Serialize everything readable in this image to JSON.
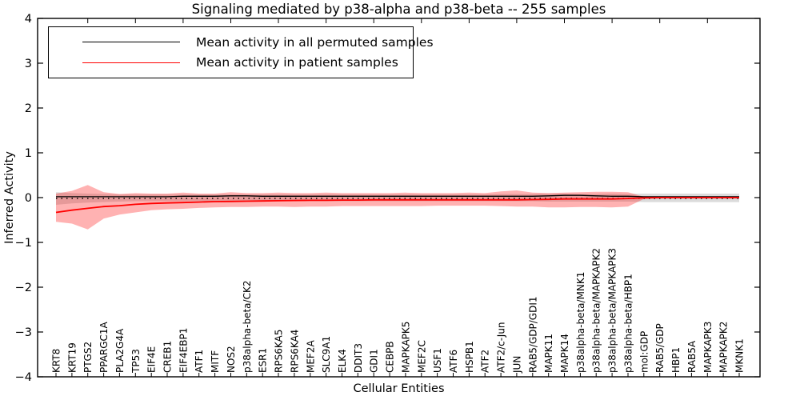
{
  "figure": {
    "background": "#ffffff"
  },
  "chart_data": {
    "type": "line",
    "title": "Signaling mediated by p38-alpha and p38-beta -- 255 samples",
    "xlabel": "Cellular Entities",
    "ylabel": "Inferred Activity",
    "ylim": [
      -4,
      4
    ],
    "yticks": [
      4,
      3,
      2,
      1,
      0,
      -1,
      -2,
      -3,
      -4
    ],
    "ytick_labels": [
      "4",
      "3",
      "2",
      "1",
      "0",
      "−1",
      "−2",
      "−3",
      "−4"
    ],
    "grid": false,
    "legend_position": "upper left",
    "categories": [
      "KRT8",
      "KRT19",
      "PTGS2",
      "PPARGC1A",
      "PLA2G4A",
      "TP53",
      "EIF4E",
      "CREB1",
      "EIF4EBP1",
      "ATF1",
      "MITF",
      "NOS2",
      "p38alpha-beta/CK2",
      "ESR1",
      "RPS6KA5",
      "RPS6KA4",
      "MEF2A",
      "SLC9A1",
      "ELK4",
      "DDIT3",
      "GDI1",
      "CEBPB",
      "MAPKAPK5",
      "MEF2C",
      "USF1",
      "ATF6",
      "HSPB1",
      "ATF2",
      "ATF2/c-Jun",
      "JUN",
      "RAB5/GDP/GDI1",
      "MAPK11",
      "MAPK14",
      "p38alpha-beta/MNK1",
      "p38alpha-beta/MAPKAPK2",
      "p38alpha-beta/MAPKAPK3",
      "p38alpha-beta/HBP1",
      "mol:GDP",
      "RAB5/GDP",
      "HBP1",
      "RAB5A",
      "MAPKAPK3",
      "MAPKAPK2",
      "MKNK1"
    ],
    "series": [
      {
        "name": "Mean activity in all permuted samples",
        "color": "#000000",
        "line_style": "solid-with-dotted-zero",
        "values": [
          0.02,
          0.02,
          0.02,
          0.02,
          0.02,
          0.02,
          0.02,
          0.02,
          0.03,
          0.03,
          0.03,
          0.04,
          0.04,
          0.03,
          0.03,
          0.03,
          0.03,
          0.03,
          0.03,
          0.03,
          0.03,
          0.03,
          0.03,
          0.03,
          0.03,
          0.03,
          0.03,
          0.03,
          0.03,
          0.03,
          0.03,
          0.04,
          0.05,
          0.05,
          0.04,
          0.03,
          0.03,
          0.02,
          0.02,
          0.02,
          0.02,
          0.02,
          0.02,
          0.02
        ],
        "band_upper": [
          0.12,
          0.1,
          0.09,
          0.08,
          0.07,
          0.07,
          0.07,
          0.07,
          0.07,
          0.07,
          0.07,
          0.07,
          0.07,
          0.07,
          0.07,
          0.07,
          0.07,
          0.07,
          0.07,
          0.07,
          0.07,
          0.07,
          0.07,
          0.07,
          0.07,
          0.07,
          0.07,
          0.07,
          0.08,
          0.08,
          0.08,
          0.09,
          0.09,
          0.08,
          0.08,
          0.09,
          0.08,
          0.09,
          0.09,
          0.09,
          0.09,
          0.09,
          0.09,
          0.09
        ],
        "band_lower": [
          -0.16,
          -0.13,
          -0.11,
          -0.1,
          -0.09,
          -0.08,
          -0.08,
          -0.08,
          -0.08,
          -0.08,
          -0.08,
          -0.08,
          -0.08,
          -0.08,
          -0.08,
          -0.08,
          -0.08,
          -0.08,
          -0.08,
          -0.08,
          -0.08,
          -0.08,
          -0.08,
          -0.08,
          -0.08,
          -0.08,
          -0.08,
          -0.08,
          -0.08,
          -0.08,
          -0.08,
          -0.09,
          -0.09,
          -0.09,
          -0.09,
          -0.09,
          -0.09,
          -0.1,
          -0.1,
          -0.1,
          -0.1,
          -0.1,
          -0.1,
          -0.1
        ],
        "band_color": "#999999",
        "band_opacity": 0.35
      },
      {
        "name": "Mean activity in patient samples",
        "color": "#ff0000",
        "line_style": "solid",
        "values": [
          -0.33,
          -0.28,
          -0.24,
          -0.2,
          -0.18,
          -0.15,
          -0.13,
          -0.12,
          -0.11,
          -0.1,
          -0.09,
          -0.085,
          -0.08,
          -0.075,
          -0.07,
          -0.065,
          -0.06,
          -0.06,
          -0.055,
          -0.055,
          -0.05,
          -0.05,
          -0.05,
          -0.05,
          -0.05,
          -0.05,
          -0.05,
          -0.05,
          -0.05,
          -0.05,
          -0.045,
          -0.04,
          -0.03,
          -0.03,
          -0.03,
          -0.03,
          -0.02,
          -0.005,
          0.0,
          0.0,
          0.0,
          0.0,
          0.0,
          0.0
        ],
        "band_upper": [
          0.09,
          0.15,
          0.28,
          0.12,
          0.08,
          0.1,
          0.09,
          0.09,
          0.11,
          0.09,
          0.09,
          0.12,
          0.1,
          0.1,
          0.11,
          0.1,
          0.1,
          0.11,
          0.1,
          0.1,
          0.1,
          0.1,
          0.11,
          0.1,
          0.1,
          0.1,
          0.11,
          0.1,
          0.14,
          0.16,
          0.11,
          0.1,
          0.11,
          0.12,
          0.13,
          0.13,
          0.12,
          0.02,
          0.015,
          0.015,
          0.015,
          0.015,
          0.015,
          0.015
        ],
        "band_lower": [
          -0.54,
          -0.58,
          -0.71,
          -0.47,
          -0.38,
          -0.33,
          -0.28,
          -0.26,
          -0.25,
          -0.23,
          -0.22,
          -0.21,
          -0.21,
          -0.2,
          -0.2,
          -0.21,
          -0.2,
          -0.2,
          -0.19,
          -0.19,
          -0.19,
          -0.19,
          -0.19,
          -0.19,
          -0.18,
          -0.18,
          -0.18,
          -0.18,
          -0.19,
          -0.2,
          -0.2,
          -0.22,
          -0.22,
          -0.21,
          -0.21,
          -0.22,
          -0.2,
          -0.03,
          -0.02,
          -0.02,
          -0.02,
          -0.02,
          -0.02,
          -0.02
        ],
        "band_color": "#ff0000",
        "band_opacity": 0.3
      }
    ]
  }
}
